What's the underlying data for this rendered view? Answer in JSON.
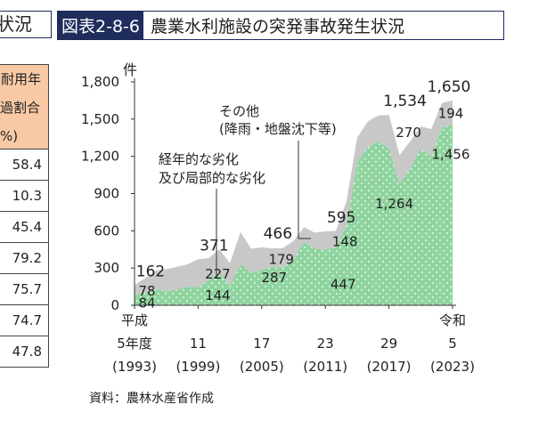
{
  "header": {
    "left_fragment": "状況",
    "badge": "図表2-8-6",
    "title": "農業水利施設の突発事故発生状況"
  },
  "side_table": {
    "header_lines": [
      "耐用年",
      "過割合",
      "%)"
    ],
    "values": [
      "58.4",
      "10.3",
      "45.4",
      "79.2",
      "75.7",
      "74.7",
      "47.8"
    ]
  },
  "source_note": "資料：農林水産省作成",
  "colors": {
    "aging": "#8fd49f",
    "other": "#c8c8c8",
    "dots": "#ffffff"
  },
  "chart_data": {
    "type": "area",
    "ylabel": "件",
    "ylim": [
      0,
      1800
    ],
    "yticks": [
      "1,800",
      "1,500",
      "1,200",
      "900",
      "600",
      "300",
      "0"
    ],
    "xticks": [
      {
        "year": 1993,
        "lines": [
          "平成",
          "5年度",
          "(1993)"
        ]
      },
      {
        "year": 1999,
        "lines": [
          "",
          "11",
          "(1999)"
        ]
      },
      {
        "year": 2005,
        "lines": [
          "",
          "17",
          "(2005)"
        ]
      },
      {
        "year": 2011,
        "lines": [
          "",
          "23",
          "(2011)"
        ]
      },
      {
        "year": 2017,
        "lines": [
          "",
          "29",
          "(2017)"
        ]
      },
      {
        "year": 2023,
        "lines": [
          "令和",
          "5",
          "(2023)"
        ]
      }
    ],
    "series": [
      {
        "name": "経年的な劣化及び局部的な劣化",
        "x": [
          1993,
          1994,
          1995,
          1996,
          1997,
          1998,
          1999,
          2000,
          2001,
          2002,
          2003,
          2004,
          2005,
          2006,
          2007,
          2008,
          2009,
          2010,
          2011,
          2012,
          2013,
          2014,
          2015,
          2016,
          2017,
          2018,
          2019,
          2020,
          2021,
          2022,
          2023
        ],
        "values": [
          84,
          100,
          130,
          110,
          125,
          150,
          144,
          200,
          260,
          160,
          330,
          260,
          287,
          310,
          300,
          370,
          510,
          455,
          447,
          470,
          640,
          1150,
          1270,
          1320,
          1264,
          980,
          1100,
          1260,
          1200,
          1430,
          1456
        ]
      },
      {
        "name": "その他(降雨・地盤沈下等)",
        "x": [
          1993,
          1994,
          1995,
          1996,
          1997,
          1998,
          1999,
          2000,
          2001,
          2002,
          2003,
          2004,
          2005,
          2006,
          2007,
          2008,
          2009,
          2010,
          2011,
          2012,
          2013,
          2014,
          2015,
          2016,
          2017,
          2018,
          2019,
          2020,
          2021,
          2022,
          2023
        ],
        "values": [
          78,
          120,
          150,
          180,
          185,
          180,
          227,
          180,
          190,
          180,
          260,
          195,
          179,
          150,
          160,
          150,
          120,
          130,
          148,
          130,
          200,
          200,
          210,
          210,
          270,
          230,
          220,
          180,
          220,
          200,
          194
        ]
      }
    ],
    "totals": [
      {
        "year": 1993,
        "value": "162"
      },
      {
        "year": 1999,
        "value": "371"
      },
      {
        "year": 2005,
        "value": "466"
      },
      {
        "year": 2011,
        "value": "595"
      },
      {
        "year": 2017,
        "value": "1,534"
      },
      {
        "year": 2023,
        "value": "1,650"
      }
    ],
    "labels_aging": [
      {
        "year": 1993,
        "value": "84"
      },
      {
        "year": 1999,
        "value": "144"
      },
      {
        "year": 2005,
        "value": "287"
      },
      {
        "year": 2011,
        "value": "447"
      },
      {
        "year": 2017,
        "value": "1,264"
      },
      {
        "year": 2023,
        "value": "1,456"
      }
    ],
    "labels_other": [
      {
        "year": 1993,
        "value": "78"
      },
      {
        "year": 1999,
        "value": "227"
      },
      {
        "year": 2005,
        "value": "179"
      },
      {
        "year": 2011,
        "value": "148"
      },
      {
        "year": 2017,
        "value": "270"
      },
      {
        "year": 2023,
        "value": "194"
      }
    ],
    "annotations": {
      "aging_lines": [
        "経年的な劣化",
        "及び局部的な劣化"
      ],
      "other_lines": [
        "その他",
        "(降雨・地盤沈下等)"
      ]
    }
  }
}
